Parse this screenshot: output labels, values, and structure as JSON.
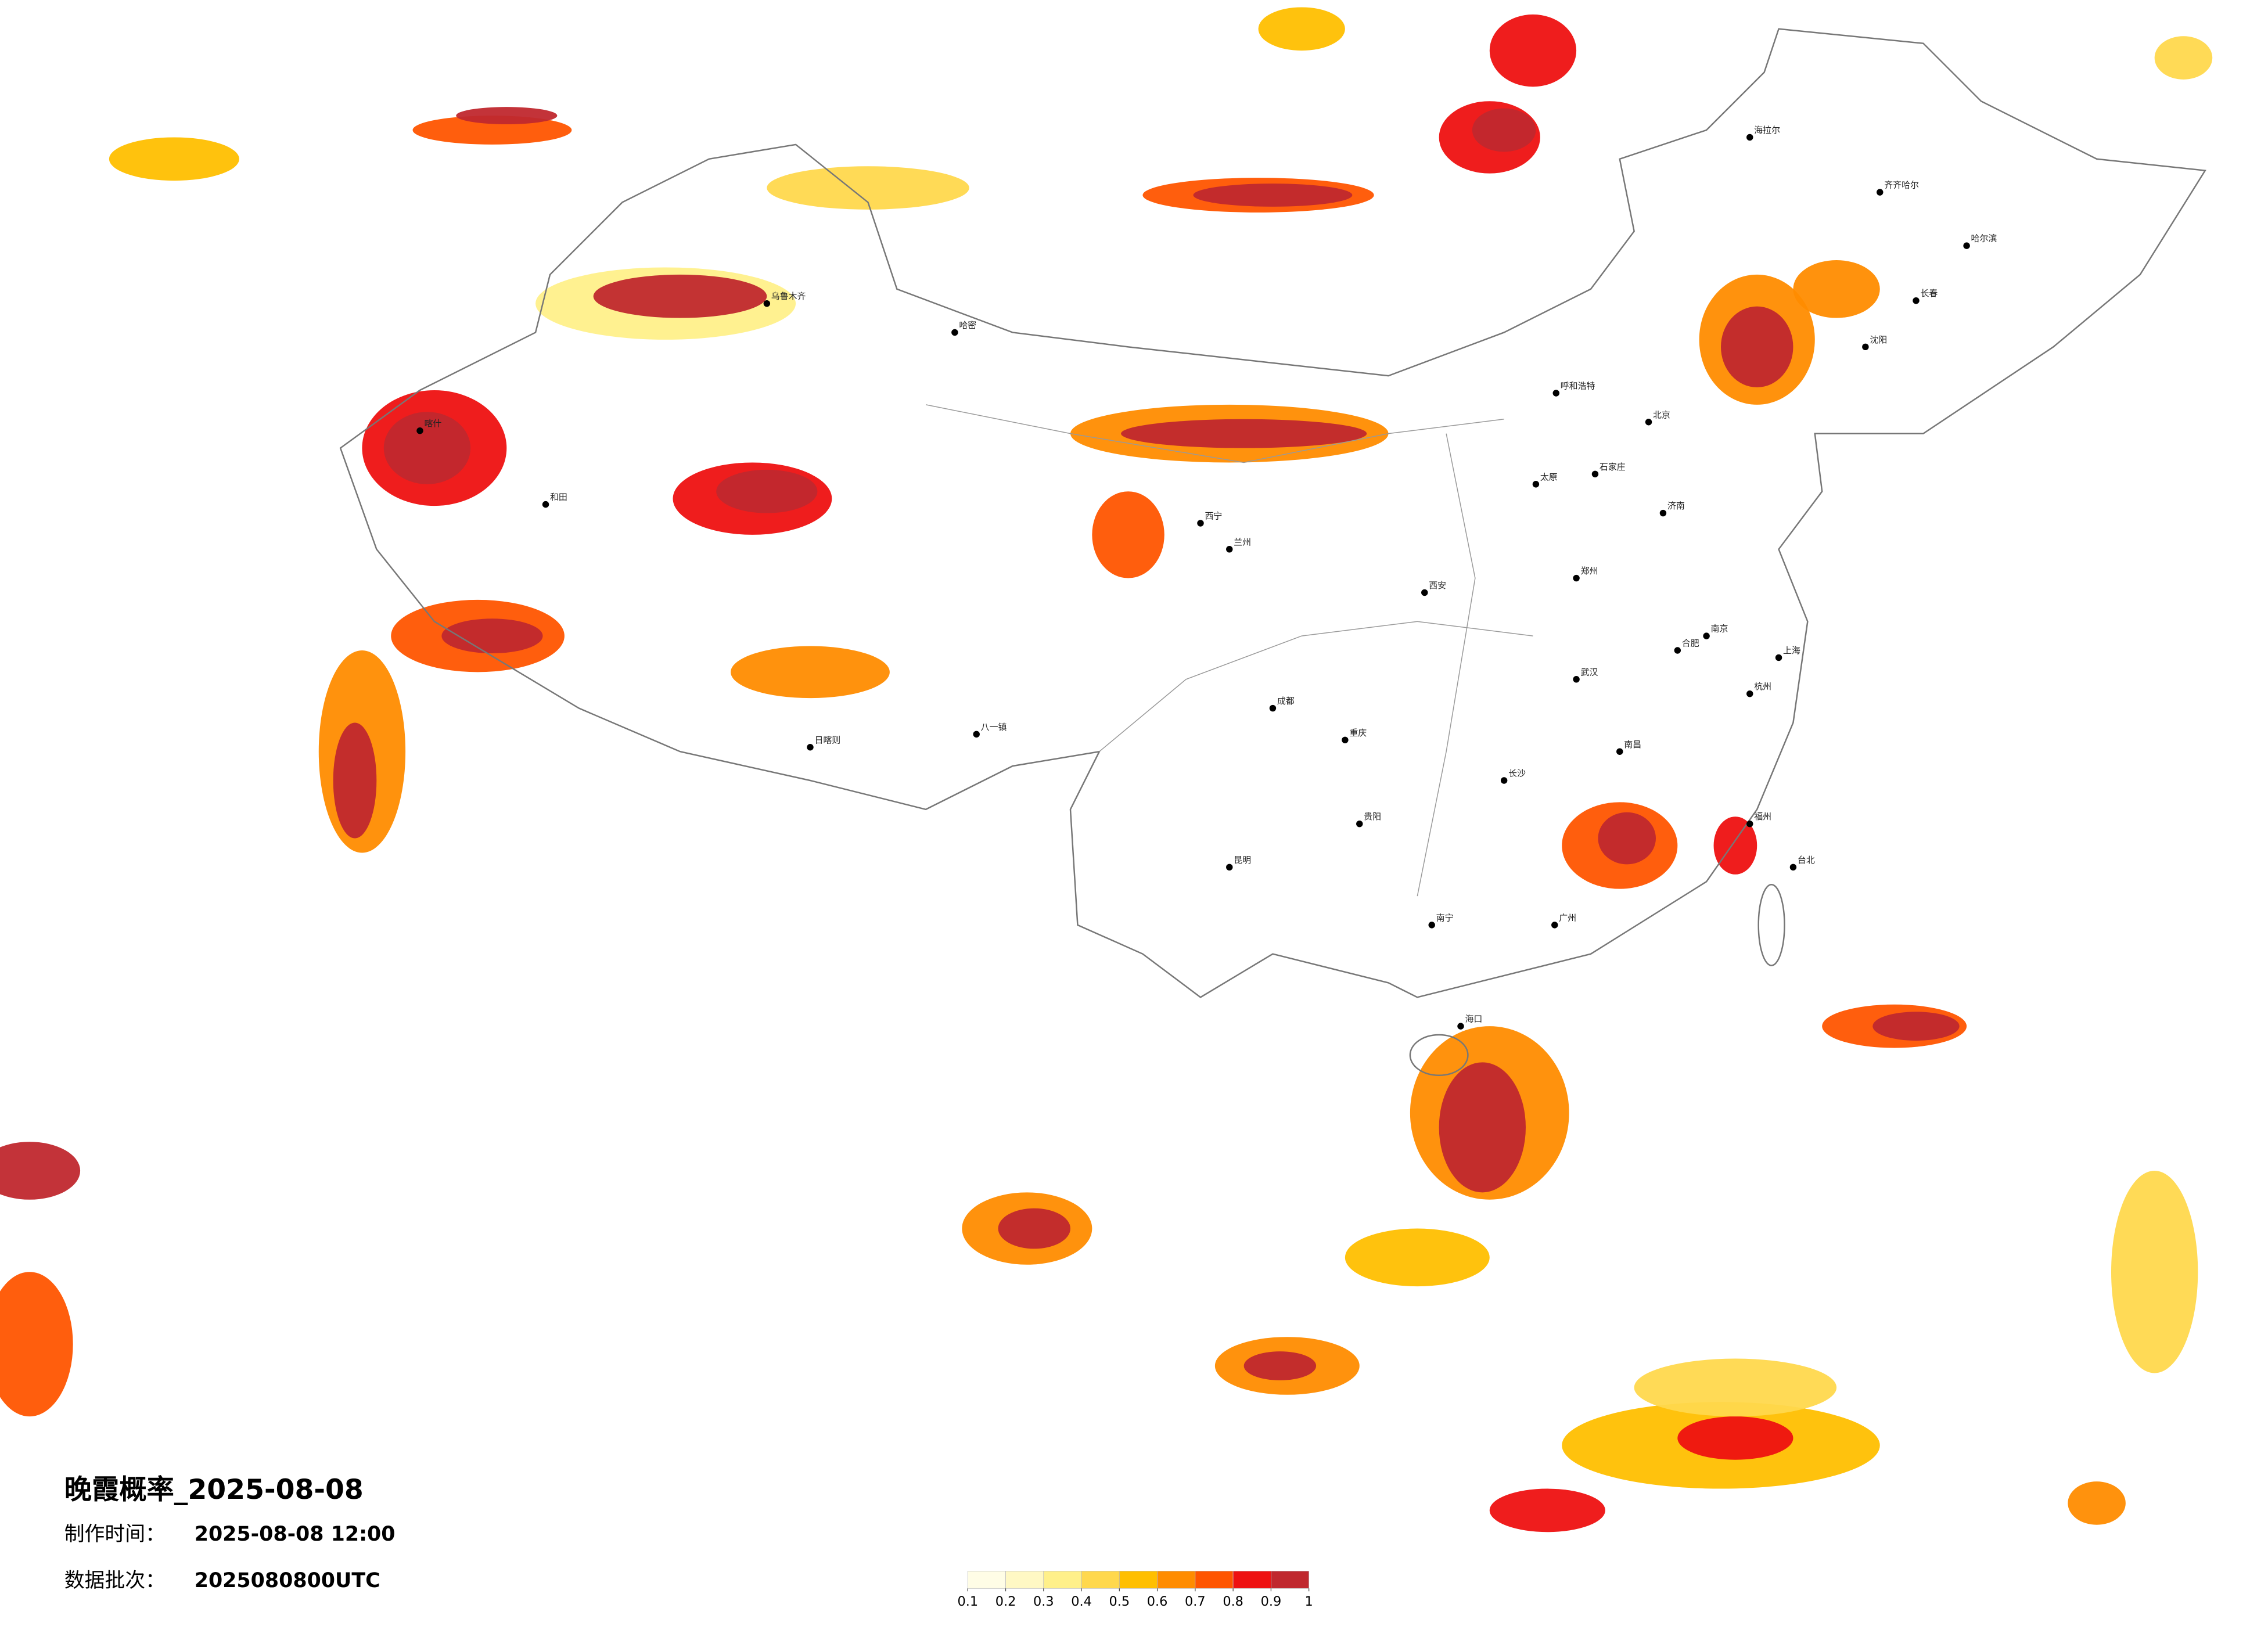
{
  "title": "晚霞概率_2025-08-08",
  "made_time": {
    "label": "制作时间：",
    "value": "2025-08-08 12:00"
  },
  "batch": {
    "label": "数据批次：",
    "value": "2025080800UTC"
  },
  "legend": {
    "colors": [
      "#fffde6",
      "#fff8c4",
      "#fff08a",
      "#ffd84d",
      "#ffbf00",
      "#ff8c00",
      "#ff5500",
      "#ee1111",
      "#c0282e"
    ],
    "ticks": [
      0.1,
      0.2,
      0.3,
      0.4,
      0.5,
      0.6,
      0.7,
      0.8,
      0.9,
      1
    ]
  },
  "cities": [
    "喀什",
    "和田",
    "乌鲁木齐",
    "哈密",
    "日喀则",
    "八一镇",
    "西宁",
    "兰州",
    "呼和浩特",
    "北京",
    "石家庄",
    "太原",
    "济南",
    "郑州",
    "西安",
    "成都",
    "重庆",
    "贵阳",
    "昆明",
    "南宁",
    "长沙",
    "武汉",
    "合肥",
    "南京",
    "上海",
    "杭州",
    "南昌",
    "福州",
    "广州",
    "海口",
    "台北",
    "沈阳",
    "长春",
    "哈尔滨",
    "齐齐哈尔",
    "海拉尔"
  ]
}
